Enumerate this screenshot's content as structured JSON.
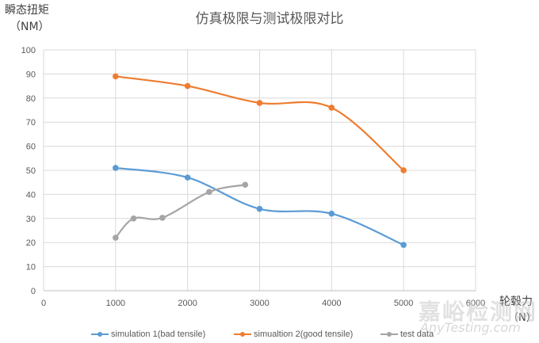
{
  "chart_data": {
    "type": "line",
    "title": "仿真极限与测试极限对比",
    "xlabel": "轮毂力 (N)",
    "ylabel": "瞬态扭矩 (NM)",
    "xlim": [
      0,
      6000
    ],
    "ylim": [
      0,
      100
    ],
    "x_ticks": [
      0,
      1000,
      2000,
      3000,
      4000,
      5000,
      6000
    ],
    "y_ticks": [
      0,
      10,
      20,
      30,
      40,
      50,
      60,
      70,
      80,
      90,
      100
    ],
    "grid": true,
    "smooth": true,
    "legend_position": "bottom",
    "series": [
      {
        "name": "simulation 1(bad tensile)",
        "color": "#5B9BD5",
        "x": [
          1000,
          2000,
          3000,
          4000,
          5000
        ],
        "values": [
          51,
          47,
          34,
          32,
          19
        ]
      },
      {
        "name": "simualtion 2(good tensile)",
        "color": "#ED7D31",
        "x": [
          1000,
          2000,
          3000,
          4000,
          5000
        ],
        "values": [
          89,
          85,
          78,
          76,
          50
        ]
      },
      {
        "name": "test data",
        "color": "#A5A5A5",
        "x": [
          1000,
          1250,
          1650,
          2300,
          2800
        ],
        "values": [
          22,
          30,
          30.3,
          41,
          44
        ]
      }
    ]
  },
  "labels": {
    "title": "仿真极限与测试极限对比",
    "y_title": "瞬态扭矩",
    "y_unit": "（NM）",
    "x_title": "轮毂力",
    "x_unit": "（N）"
  },
  "watermark": {
    "cn": "嘉峪检测网",
    "en": "AnyTesting.com"
  }
}
